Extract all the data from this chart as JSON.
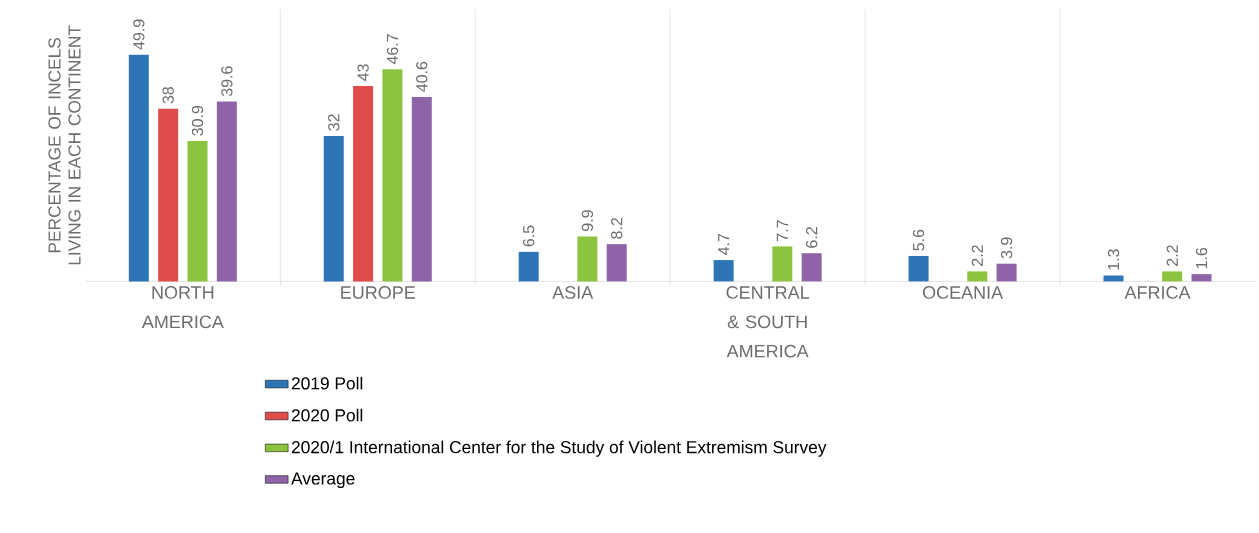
{
  "chart_data": {
    "type": "bar",
    "ylabel": "PERCENTAGE OF INCELS LIVING IN EACH CONTINENT",
    "categories": [
      "NORTH AMERICA",
      "EUROPE",
      "ASIA",
      "CENTRAL & SOUTH AMERICA",
      "OCEANIA",
      "AFRICA"
    ],
    "series": [
      {
        "name": "2019 Poll",
        "color": "#2e75b6",
        "values": [
          49.9,
          32,
          6.5,
          4.7,
          5.6,
          1.3
        ]
      },
      {
        "name": "2020 Poll",
        "color": "#e04b4b",
        "values": [
          38,
          43,
          null,
          null,
          null,
          null
        ]
      },
      {
        "name": "2020/1 International Center for the Study of Violent Extremism Survey",
        "color": "#8cc43f",
        "values": [
          30.9,
          46.7,
          9.9,
          7.7,
          2.2,
          2.2
        ]
      },
      {
        "name": "Average",
        "color": "#8e63a8",
        "values": [
          39.6,
          40.6,
          8.2,
          6.2,
          3.9,
          1.6
        ]
      }
    ],
    "data_labels": true,
    "grid": "x",
    "legend": "bottom"
  }
}
